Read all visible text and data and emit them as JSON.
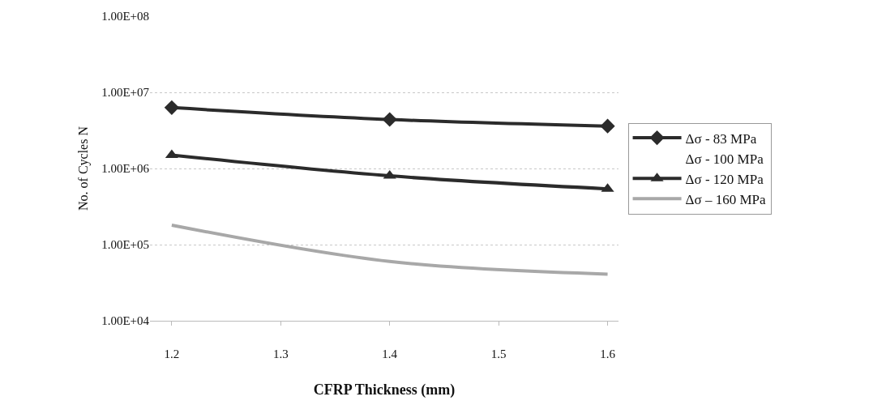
{
  "chart_data": {
    "type": "line",
    "xlabel": "CFRP Thickness (mm)",
    "ylabel": "No. of Cycles N",
    "x": [
      1.2,
      1.4,
      1.6
    ],
    "series": [
      {
        "name": "Δσ - 83 MPa",
        "color": "#2b2b2b",
        "marker": "diamond",
        "values": [
          6300000,
          4400000,
          3600000
        ]
      },
      {
        "name": "Δσ - 100 MPa",
        "marker": "none",
        "values": [
          null,
          null,
          null
        ]
      },
      {
        "name": "Δσ - 120 MPa",
        "color": "#2b2b2b",
        "marker": "triangle",
        "values": [
          1500000,
          800000,
          540000
        ]
      },
      {
        "name": "Δσ – 160 MPa",
        "color": "#a8a8a8",
        "marker": "none",
        "values": [
          180000,
          60000,
          41000
        ]
      }
    ],
    "log": "y",
    "xlim": [
      1.18,
      1.61
    ],
    "xticks": [
      1.2,
      1.3,
      1.4,
      1.5,
      1.6
    ],
    "ylim": [
      10000,
      100000000
    ],
    "yticks": [
      {
        "value": 10000,
        "label": "1.00E+04"
      },
      {
        "value": 100000,
        "label": "1.00E+05"
      },
      {
        "value": 1000000,
        "label": "1.00E+06"
      },
      {
        "value": 10000000,
        "label": "1.00E+07"
      },
      {
        "value": 100000000,
        "label": "1.00E+08"
      }
    ],
    "grid": "y",
    "legend": "right"
  }
}
